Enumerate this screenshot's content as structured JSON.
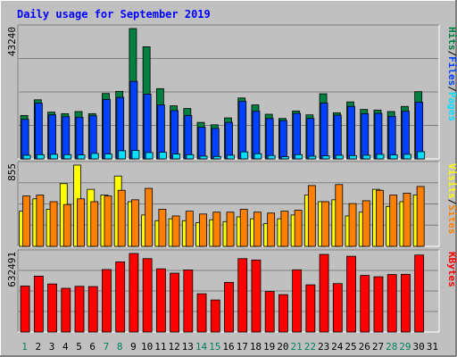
{
  "title": "Daily usage for September 2019",
  "colors": {
    "background": "#c0c0c0",
    "plot_background": "#c0c0c0",
    "title": "#0000ff",
    "hits": "#008040",
    "files": "#0040ff",
    "pages": "#00e0ff",
    "visits": "#ffff00",
    "sites": "#ff8000",
    "kbytes": "#ff0000",
    "weekend_label": "#00805c",
    "weekday_label": "#000000",
    "grid": "#808080"
  },
  "chart_data": [
    {
      "type": "bar",
      "panel": "hits-files-pages",
      "ymax_label": "43240",
      "legend": [
        "Pages",
        "Files",
        "Hits"
      ],
      "x": [
        1,
        2,
        3,
        4,
        5,
        6,
        7,
        8,
        9,
        10,
        11,
        12,
        13,
        14,
        15,
        16,
        17,
        18,
        19,
        20,
        21,
        22,
        23,
        24,
        25,
        26,
        27,
        28,
        29,
        30,
        31
      ],
      "ylim": [
        0,
        43240
      ],
      "series": [
        {
          "name": "Hits",
          "values": [
            14400,
            19600,
            15500,
            15000,
            15700,
            15000,
            21700,
            22400,
            43240,
            37200,
            23300,
            17600,
            16700,
            12100,
            11300,
            13600,
            20200,
            17900,
            14800,
            13400,
            15900,
            14600,
            21600,
            15300,
            18900,
            16400,
            16200,
            15700,
            17400,
            22300,
            0
          ]
        },
        {
          "name": "Files",
          "values": [
            13100,
            18500,
            14600,
            14000,
            13800,
            14300,
            19700,
            20400,
            25700,
            21500,
            17900,
            16000,
            14400,
            10500,
            10100,
            12100,
            19100,
            15800,
            13400,
            12700,
            15100,
            13400,
            18500,
            14500,
            17400,
            15000,
            15100,
            14100,
            15800,
            18800,
            0
          ]
        },
        {
          "name": "Pages",
          "values": [
            1200,
            1400,
            1500,
            1400,
            1300,
            1800,
            1600,
            2700,
            2800,
            2100,
            2200,
            1600,
            1400,
            900,
            800,
            1200,
            2300,
            1700,
            1100,
            700,
            1400,
            900,
            1000,
            1200,
            1100,
            1200,
            1500,
            1300,
            1500,
            2400,
            0
          ]
        }
      ]
    },
    {
      "type": "bar",
      "panel": "visits-sites",
      "ymax_label": "855",
      "legend": [
        "Sites",
        "Visits"
      ],
      "x": [
        1,
        2,
        3,
        4,
        5,
        6,
        7,
        8,
        9,
        10,
        11,
        12,
        13,
        14,
        15,
        16,
        17,
        18,
        19,
        20,
        21,
        22,
        23,
        24,
        25,
        26,
        27,
        28,
        29,
        30,
        31
      ],
      "ylim": [
        0,
        855
      ],
      "series": [
        {
          "name": "Visits",
          "values": [
            370,
            500,
            390,
            660,
            855,
            600,
            540,
            740,
            470,
            330,
            270,
            290,
            270,
            250,
            280,
            260,
            310,
            290,
            240,
            290,
            330,
            540,
            470,
            490,
            320,
            360,
            600,
            420,
            470,
            540,
            0
          ]
        },
        {
          "name": "Sites",
          "values": [
            530,
            540,
            470,
            440,
            500,
            470,
            530,
            590,
            490,
            610,
            390,
            320,
            370,
            340,
            360,
            360,
            390,
            360,
            350,
            370,
            380,
            640,
            470,
            650,
            450,
            480,
            590,
            540,
            560,
            630,
            0
          ]
        }
      ]
    },
    {
      "type": "bar",
      "panel": "kbytes",
      "ymax_label": "632491",
      "legend": [
        "KBytes"
      ],
      "x": [
        1,
        2,
        3,
        4,
        5,
        6,
        7,
        8,
        9,
        10,
        11,
        12,
        13,
        14,
        15,
        16,
        17,
        18,
        19,
        20,
        21,
        22,
        23,
        24,
        25,
        26,
        27,
        28,
        29,
        30,
        31
      ],
      "ylim": [
        0,
        632491
      ],
      "series": [
        {
          "name": "KBytes",
          "values": [
            370000,
            450000,
            387000,
            352000,
            368000,
            366000,
            503000,
            565000,
            632491,
            591000,
            509000,
            474000,
            500000,
            308000,
            258000,
            400000,
            591000,
            580000,
            326000,
            301000,
            501000,
            380000,
            625000,
            390000,
            610000,
            456000,
            445000,
            463000,
            465000,
            620000,
            0
          ]
        }
      ]
    }
  ],
  "x_labels": [
    "1",
    "2",
    "3",
    "4",
    "5",
    "6",
    "7",
    "8",
    "9",
    "10",
    "11",
    "12",
    "13",
    "14",
    "15",
    "16",
    "17",
    "18",
    "19",
    "20",
    "21",
    "22",
    "23",
    "24",
    "25",
    "26",
    "27",
    "28",
    "29",
    "30",
    "31"
  ],
  "weekend_days": [
    1,
    7,
    8,
    14,
    15,
    21,
    22,
    28,
    29
  ]
}
